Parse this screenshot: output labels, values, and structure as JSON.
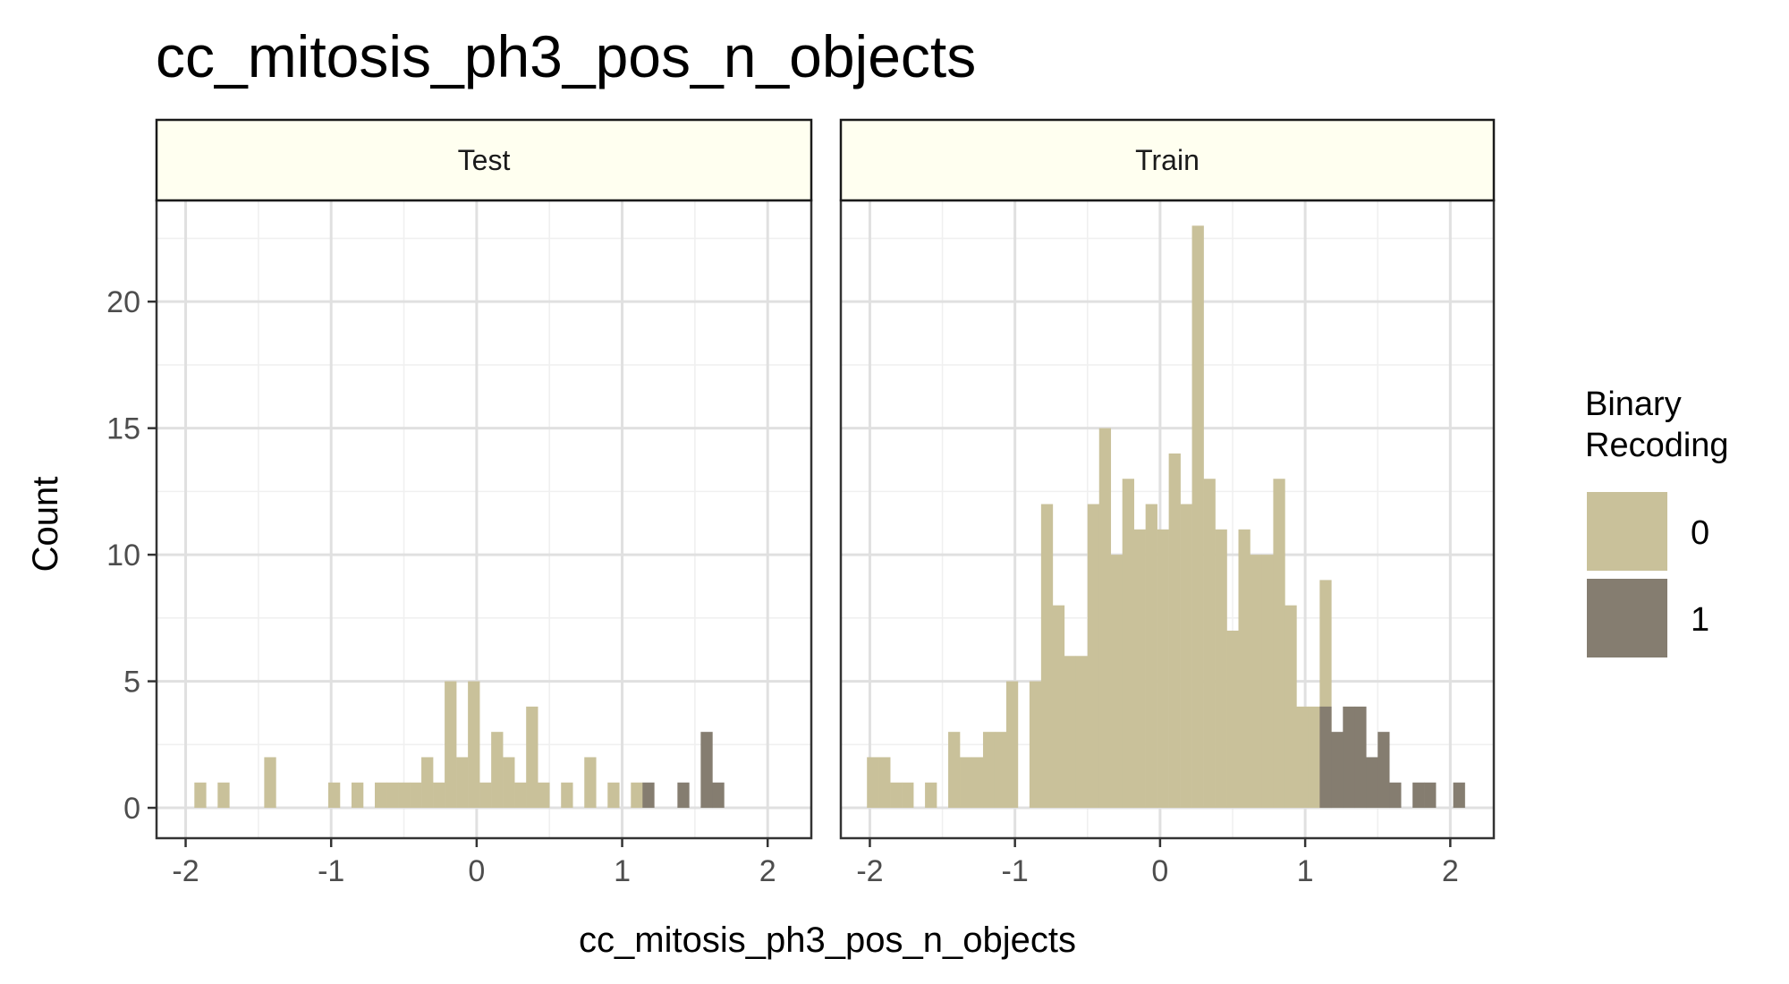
{
  "chart_data": {
    "type": "bar",
    "title": "cc_mitosis_ph3_pos_n_objects",
    "xlabel": "cc_mitosis_ph3_pos_n_objects",
    "ylabel": "Count",
    "xlim": [
      -2.2,
      2.3
    ],
    "ylim": [
      -1.2,
      24
    ],
    "x_ticks": [
      -2,
      -1,
      0,
      1,
      2
    ],
    "y_ticks": [
      0,
      5,
      10,
      15,
      20
    ],
    "x_tick_labels": [
      "-2",
      "-1",
      "0",
      "1",
      "2"
    ],
    "y_tick_labels": [
      "0",
      "5",
      "10",
      "15",
      "20"
    ],
    "bin_width": 0.08,
    "grid": true,
    "legend": {
      "title_lines": [
        "Binary",
        "Recoding"
      ],
      "position": "right",
      "items": [
        {
          "label": "0",
          "color": "#c9c19a"
        },
        {
          "label": "1",
          "color": "#857d70"
        }
      ]
    },
    "panels": [
      {
        "label": "Test",
        "series": [
          {
            "name": "0",
            "color": "#c9c19a",
            "bin_starts": [
              -1.94,
              -1.78,
              -1.46,
              -1.02,
              -0.86,
              -0.7,
              -0.62,
              -0.54,
              -0.46,
              -0.38,
              -0.3,
              -0.22,
              -0.14,
              -0.06,
              0.02,
              0.1,
              0.18,
              0.26,
              0.34,
              0.42,
              0.58,
              0.74,
              0.9,
              1.06
            ],
            "values": [
              1,
              1,
              2,
              1,
              1,
              1,
              1,
              1,
              1,
              2,
              1,
              5,
              2,
              5,
              1,
              3,
              2,
              1,
              4,
              1,
              1,
              2,
              1,
              1
            ]
          },
          {
            "name": "1",
            "color": "#857d70",
            "bin_starts": [
              1.14,
              1.38,
              1.54,
              1.62
            ],
            "values": [
              1,
              1,
              3,
              1
            ]
          }
        ]
      },
      {
        "label": "Train",
        "series": [
          {
            "name": "0",
            "color": "#c9c19a",
            "bin_starts": [
              -2.02,
              -1.94,
              -1.86,
              -1.78,
              -1.62,
              -1.46,
              -1.38,
              -1.3,
              -1.22,
              -1.14,
              -1.06,
              -0.9,
              -0.82,
              -0.74,
              -0.66,
              -0.58,
              -0.5,
              -0.42,
              -0.34,
              -0.26,
              -0.18,
              -0.1,
              -0.02,
              0.06,
              0.14,
              0.22,
              0.3,
              0.38,
              0.46,
              0.54,
              0.62,
              0.7,
              0.78,
              0.86,
              0.94,
              1.02,
              1.1
            ],
            "values": [
              2,
              2,
              1,
              1,
              1,
              3,
              2,
              2,
              3,
              3,
              5,
              5,
              12,
              8,
              6,
              6,
              12,
              15,
              10,
              13,
              11,
              12,
              11,
              14,
              12,
              23,
              13,
              11,
              7,
              11,
              10,
              10,
              13,
              8,
              4,
              4,
              9
            ]
          },
          {
            "name": "1",
            "color": "#857d70",
            "bin_starts": [
              1.1,
              1.18,
              1.26,
              1.34,
              1.42,
              1.5,
              1.58,
              1.74,
              1.82,
              2.02
            ],
            "values": [
              4,
              3,
              4,
              4,
              2,
              3,
              1,
              1,
              1,
              1
            ]
          }
        ]
      }
    ]
  }
}
